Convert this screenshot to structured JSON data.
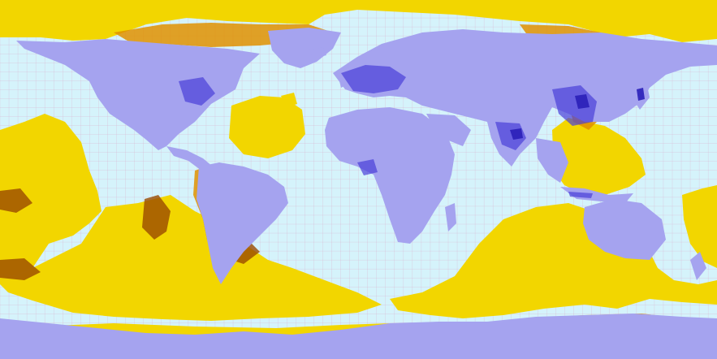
{
  "map": {
    "projection": "equirectangular",
    "colors": {
      "ocean": "#d5f3fb",
      "grid": "#d9a8c8",
      "land": "#a5a3ef",
      "land_dense": "#4a3fd8",
      "land_dense_dark": "#2a1fb8",
      "antipode_land": "#f2d600",
      "antipode_land_alt": "#ffe000",
      "antipode_dense": "#e09000",
      "antipode_dense_dark": "#9a4a00"
    },
    "layers": [
      "ocean-background",
      "graticule-grid",
      "land-masses",
      "population-density-points",
      "antipode-land-masses",
      "antipode-density-points"
    ]
  }
}
